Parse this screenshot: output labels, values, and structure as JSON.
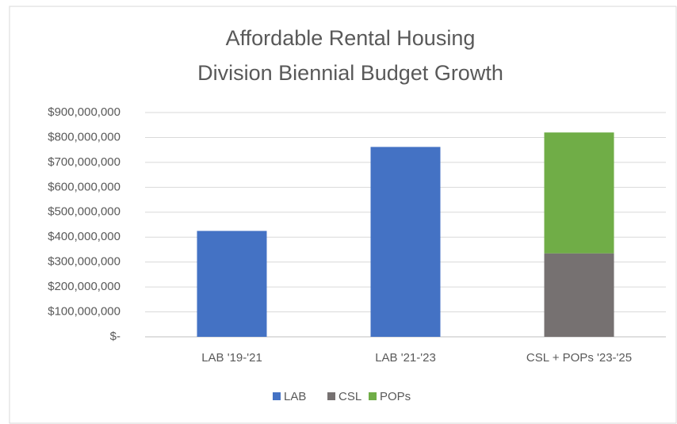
{
  "chart_data": {
    "type": "stacked_bar",
    "title": [
      "Affordable Rental Housing",
      "Division Biennial Budget Growth"
    ],
    "categories": [
      "LAB '19-'21",
      "LAB '21-'23",
      "CSL + POPs '23-'25"
    ],
    "series": [
      {
        "name": "LAB",
        "color": "#4472c4",
        "values": [
          425000000,
          762000000,
          null
        ]
      },
      {
        "name": "CSL",
        "color": "#767171",
        "values": [
          null,
          null,
          335000000
        ]
      },
      {
        "name": "POPs",
        "color": "#70ad47",
        "values": [
          null,
          null,
          485000000
        ]
      }
    ],
    "ylim": [
      0,
      900000000
    ],
    "yticks": [
      {
        "value": 0,
        "label": "$-"
      },
      {
        "value": 100000000,
        "label": "$100,000,000"
      },
      {
        "value": 200000000,
        "label": "$200,000,000"
      },
      {
        "value": 300000000,
        "label": "$300,000,000"
      },
      {
        "value": 400000000,
        "label": "$400,000,000"
      },
      {
        "value": 500000000,
        "label": "$500,000,000"
      },
      {
        "value": 600000000,
        "label": "$600,000,000"
      },
      {
        "value": 700000000,
        "label": "$700,000,000"
      },
      {
        "value": 800000000,
        "label": "$800,000,000"
      },
      {
        "value": 900000000,
        "label": "$900,000,000"
      }
    ],
    "grid": true,
    "legend": "bottom"
  }
}
